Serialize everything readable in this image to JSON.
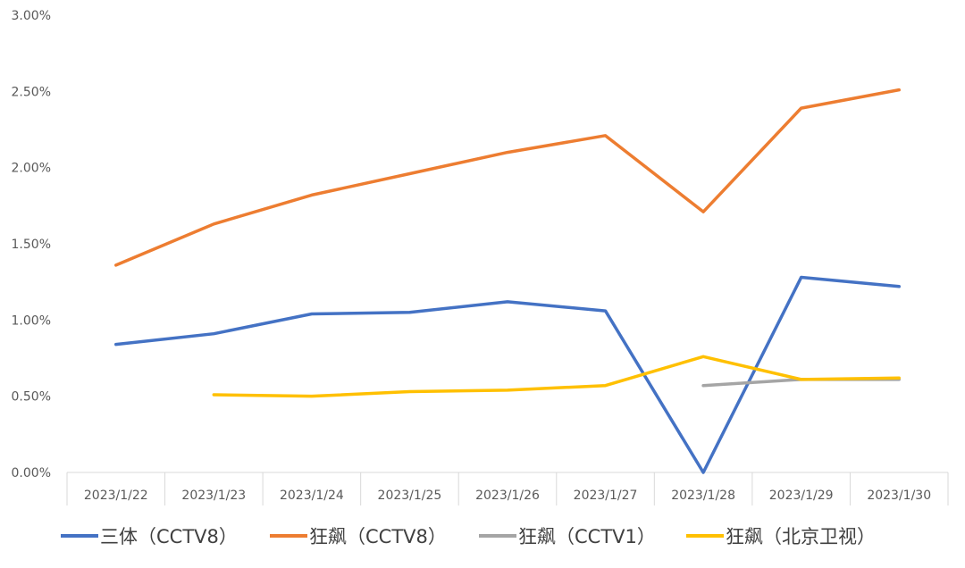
{
  "chart_data": {
    "type": "line",
    "title": "",
    "xlabel": "",
    "ylabel": "",
    "categories": [
      "2023/1/22",
      "2023/1/23",
      "2023/1/24",
      "2023/1/25",
      "2023/1/26",
      "2023/1/27",
      "2023/1/28",
      "2023/1/29",
      "2023/1/30"
    ],
    "ylim": [
      0,
      0.03
    ],
    "yticks": [
      "0.00%",
      "0.50%",
      "1.00%",
      "1.50%",
      "2.00%",
      "2.50%",
      "3.00%"
    ],
    "grid": false,
    "legend_position": "bottom",
    "series": [
      {
        "name": "三体（CCTV8）",
        "color": "#4472C4",
        "values": [
          0.0084,
          0.0091,
          0.0104,
          0.0105,
          0.0112,
          0.0106,
          0.0,
          0.0128,
          0.0122
        ]
      },
      {
        "name": "狂飙（CCTV8）",
        "color": "#ED7D31",
        "values": [
          0.0136,
          0.0163,
          0.0182,
          0.0196,
          0.021,
          0.0221,
          0.0171,
          0.0239,
          0.0251
        ]
      },
      {
        "name": "狂飙（CCTV1）",
        "color": "#A5A5A5",
        "values": [
          null,
          null,
          null,
          null,
          null,
          null,
          0.0057,
          0.0061,
          0.0061
        ]
      },
      {
        "name": "狂飙（北京卫视）",
        "color": "#FFC000",
        "values": [
          null,
          0.0051,
          0.005,
          0.0053,
          0.0054,
          0.0057,
          0.0076,
          0.0061,
          0.0062
        ]
      }
    ]
  }
}
